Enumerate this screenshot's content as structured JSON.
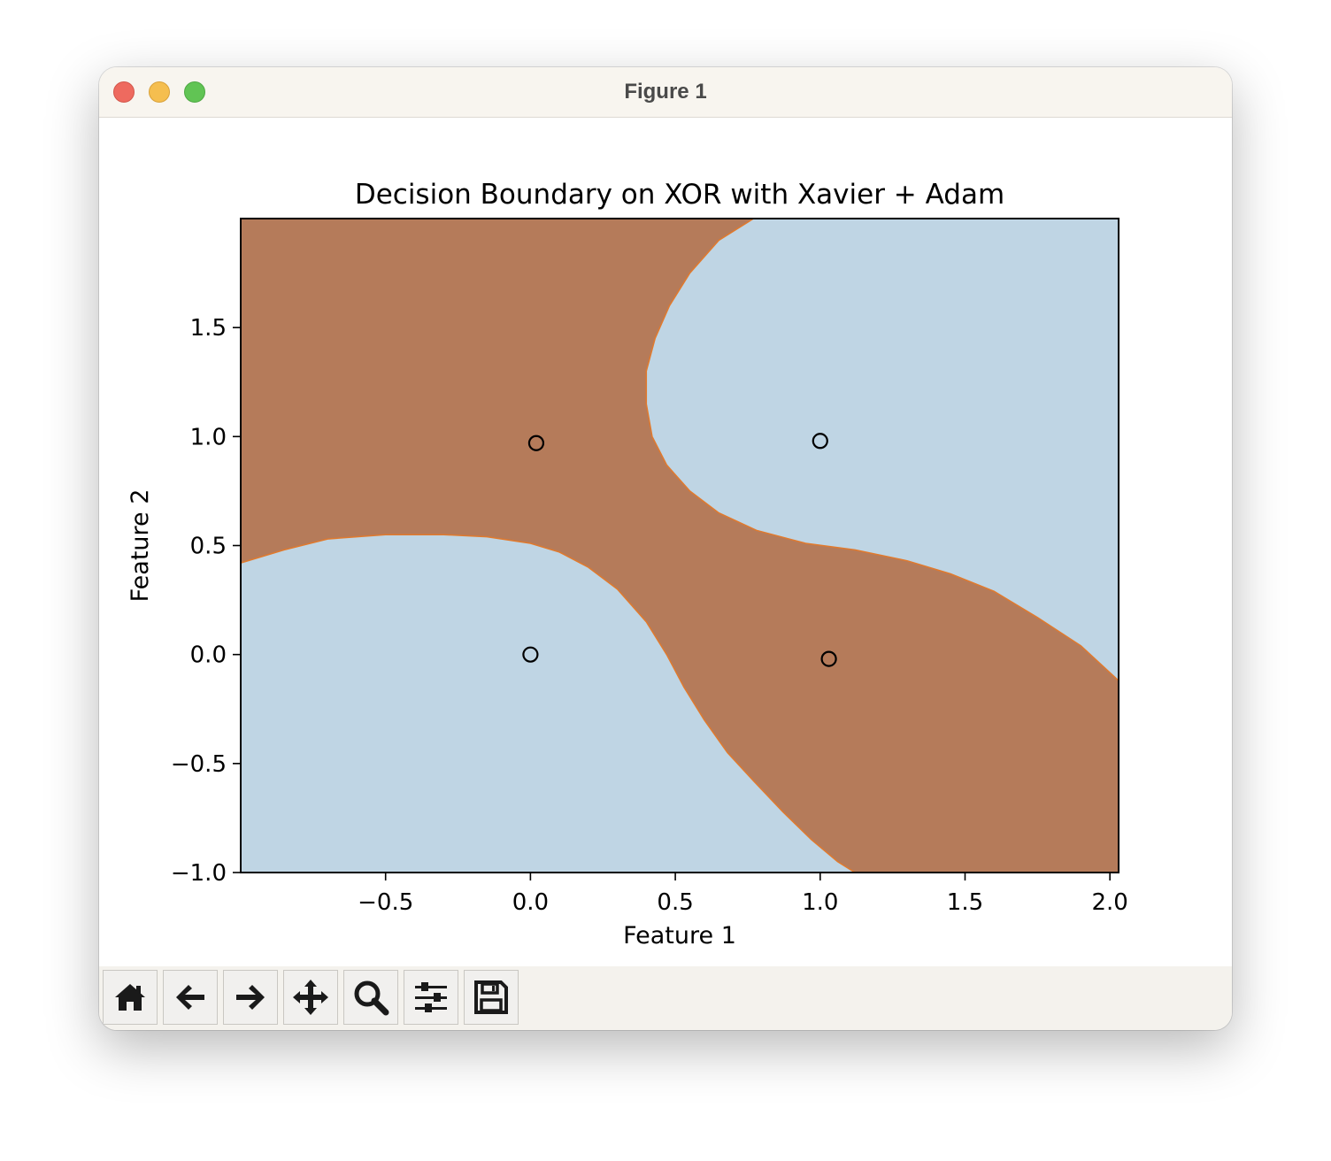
{
  "window": {
    "title": "Figure 1"
  },
  "toolbar": {
    "buttons": [
      {
        "name": "home-button",
        "icon": "home-icon"
      },
      {
        "name": "back-button",
        "icon": "arrow-left-icon"
      },
      {
        "name": "forward-button",
        "icon": "arrow-right-icon"
      },
      {
        "name": "pan-button",
        "icon": "move-arrows-icon"
      },
      {
        "name": "zoom-button",
        "icon": "magnifier-icon"
      },
      {
        "name": "configure-subplots-button",
        "icon": "sliders-icon"
      },
      {
        "name": "save-button",
        "icon": "floppy-disk-icon"
      }
    ]
  },
  "colors": {
    "class0_region": "#bfd5e4",
    "class1_region": "#b57b5a",
    "boundary": "#e07a2e",
    "titlebar": "#f8f5ef",
    "toolbar": "#f4f2ed"
  },
  "chart_data": {
    "type": "scatter",
    "title": "Decision Boundary on XOR with Xavier + Adam",
    "xlabel": "Feature 1",
    "ylabel": "Feature 2",
    "xlim": [
      -1.0,
      2.03
    ],
    "ylim": [
      -1.0,
      2.0
    ],
    "xticks": [
      -0.5,
      0.0,
      0.5,
      1.0,
      1.5,
      2.0
    ],
    "xtick_labels": [
      "−0.5",
      "0.0",
      "0.5",
      "1.0",
      "1.5",
      "2.0"
    ],
    "yticks": [
      -1.0,
      -0.5,
      0.0,
      0.5,
      1.0,
      1.5
    ],
    "ytick_labels": [
      "−1.0",
      "−0.5",
      "0.0",
      "0.5",
      "1.0",
      "1.5"
    ],
    "grid": false,
    "background": "decision regions (filled contour)",
    "points": [
      {
        "x": 0.0,
        "y": 0.0,
        "class": 0
      },
      {
        "x": 0.02,
        "y": 0.97,
        "class": 1
      },
      {
        "x": 1.0,
        "y": 0.98,
        "class": 0
      },
      {
        "x": 1.03,
        "y": -0.02,
        "class": 1
      }
    ],
    "boundary_lower_left": [
      [
        -1.0,
        0.42
      ],
      [
        -0.85,
        0.48
      ],
      [
        -0.7,
        0.53
      ],
      [
        -0.5,
        0.55
      ],
      [
        -0.3,
        0.55
      ],
      [
        -0.15,
        0.54
      ],
      [
        0.0,
        0.51
      ],
      [
        0.1,
        0.47
      ],
      [
        0.2,
        0.4
      ],
      [
        0.3,
        0.3
      ],
      [
        0.4,
        0.15
      ],
      [
        0.47,
        0.0
      ],
      [
        0.53,
        -0.15
      ],
      [
        0.6,
        -0.3
      ],
      [
        0.68,
        -0.45
      ],
      [
        0.77,
        -0.58
      ],
      [
        0.87,
        -0.72
      ],
      [
        0.97,
        -0.85
      ],
      [
        1.06,
        -0.95
      ],
      [
        1.12,
        -1.0
      ]
    ],
    "boundary_upper_right": [
      [
        0.77,
        2.0
      ],
      [
        0.65,
        1.9
      ],
      [
        0.55,
        1.75
      ],
      [
        0.48,
        1.6
      ],
      [
        0.43,
        1.45
      ],
      [
        0.4,
        1.3
      ],
      [
        0.4,
        1.15
      ],
      [
        0.42,
        1.0
      ],
      [
        0.47,
        0.87
      ],
      [
        0.55,
        0.75
      ],
      [
        0.65,
        0.65
      ],
      [
        0.78,
        0.57
      ],
      [
        0.95,
        0.51
      ],
      [
        1.12,
        0.48
      ],
      [
        1.3,
        0.43
      ],
      [
        1.45,
        0.37
      ],
      [
        1.6,
        0.29
      ],
      [
        1.75,
        0.17
      ],
      [
        1.9,
        0.04
      ],
      [
        2.03,
        -0.12
      ]
    ]
  }
}
